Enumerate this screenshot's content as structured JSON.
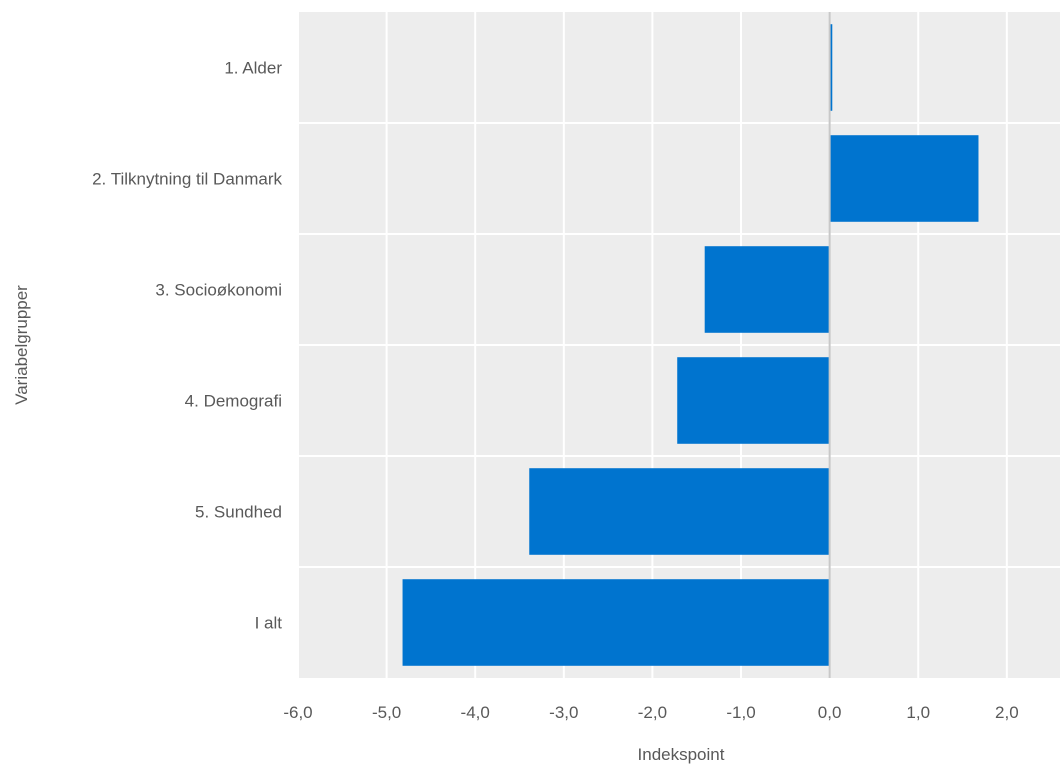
{
  "chart_data": {
    "type": "bar",
    "orientation": "horizontal",
    "categories": [
      "1. Alder",
      "2. Tilknytning til Danmark",
      "3. Socioøkonomi",
      "4. Demografi",
      "5. Sundhed",
      "I alt"
    ],
    "values": [
      0.03,
      1.68,
      -1.41,
      -1.72,
      -3.39,
      -4.82
    ],
    "xlabel": "Indekspoint",
    "ylabel": "Variabelgrupper",
    "xlim": [
      -6,
      2.6
    ],
    "xticks": [
      -6,
      -5,
      -4,
      -3,
      -2,
      -1,
      0,
      1,
      2
    ],
    "xtick_labels": [
      "-6,0",
      "-5,0",
      "-4,0",
      "-3,0",
      "-2,0",
      "-1,0",
      "0,0",
      "1,0",
      "2,0"
    ],
    "grid": true,
    "legend": "none",
    "colors": {
      "bar": "#0074cf",
      "panel": "#ededed",
      "grid": "#ffffff",
      "zero_line": "#c8c8c8"
    }
  }
}
